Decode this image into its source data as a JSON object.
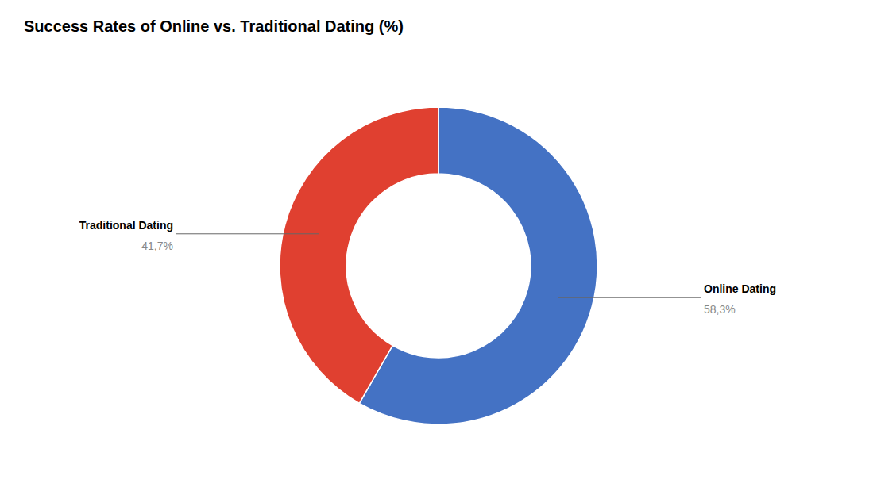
{
  "chart_data": {
    "type": "donut",
    "title": "Success Rates of Online vs. Traditional Dating (%)",
    "categories": [
      "Online Dating",
      "Traditional Dating"
    ],
    "values": [
      58.3,
      41.7
    ],
    "value_labels": [
      "58,3%",
      "41,7%"
    ],
    "colors": [
      "#4472C4",
      "#E04030"
    ],
    "data_labels": true
  }
}
